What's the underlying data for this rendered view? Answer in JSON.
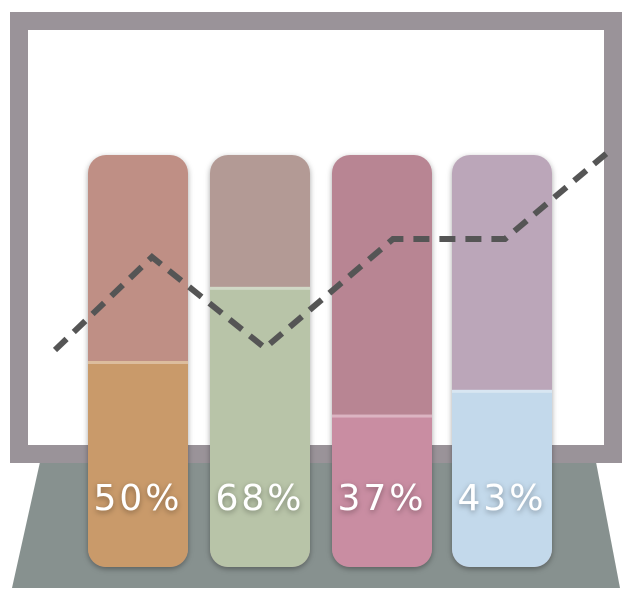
{
  "chart_data": {
    "type": "bar",
    "values": [
      50,
      68,
      37,
      43
    ],
    "value_labels": [
      "50%",
      "68%",
      "37%",
      "43%"
    ],
    "colors": [
      "#c99a6a",
      "#b8c4a8",
      "#c98da2",
      "#c3d9eb"
    ],
    "ylim": [
      0,
      100
    ]
  }
}
